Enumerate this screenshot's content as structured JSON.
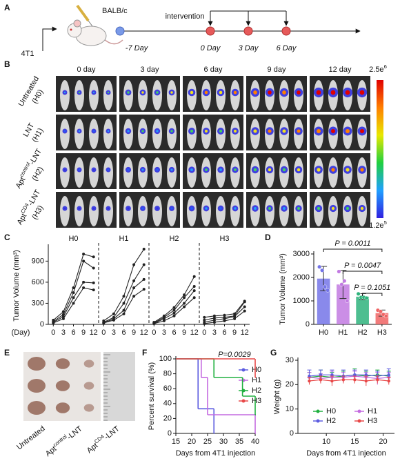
{
  "panel_a": {
    "label": "A",
    "cell_line": "4T1",
    "mouse": "BALB/c",
    "start": "-7 Day",
    "intervention": "intervention",
    "days": [
      "0 Day",
      "3 Day",
      "6 Day"
    ]
  },
  "panel_b": {
    "label": "B",
    "columns": [
      "0 day",
      "3 day",
      "6 day",
      "9 day",
      "12 day"
    ],
    "rows": [
      {
        "lines": [
          "Untreated",
          "(H0)"
        ]
      },
      {
        "lines": [
          "LNT",
          "(H1)"
        ]
      },
      {
        "lines": [
          {
            "base": "Apt",
            "sup": "control",
            "rest": "-LNT"
          },
          "(H2)"
        ]
      },
      {
        "lines": [
          {
            "base": "Apt",
            "sup": "CD4",
            "rest": "-LNT"
          },
          "(H3)"
        ]
      }
    ],
    "colorbar": {
      "max": {
        "base": "2.5e",
        "sup": "6"
      },
      "min": {
        "base": "1.2e",
        "sup": "5"
      }
    }
  },
  "panel_e": {
    "label": "E",
    "groups": [
      "Untreated",
      {
        "base": "Apt",
        "sup": "control",
        "rest": "-LNT"
      },
      {
        "base": "Apt",
        "sup": "CD4",
        "rest": "-LNT"
      }
    ]
  },
  "chart_data": [
    {
      "panel": "C",
      "type": "line",
      "ylabel": "Tumor Volume (mm³)",
      "xlabel": "(Day)",
      "x": [
        0,
        3,
        6,
        9,
        12
      ],
      "xticks": [
        0,
        3,
        6,
        9,
        12
      ],
      "xlim": [
        -1.5,
        13.5
      ],
      "ylim": [
        0,
        1100
      ],
      "yticks": [
        0,
        300,
        600,
        900
      ],
      "color": "#222",
      "groups": [
        {
          "name": "H0",
          "series": [
            {
              "values": [
                60,
                180,
                520,
                1000,
                960
              ]
            },
            {
              "values": [
                40,
                140,
                450,
                900,
                800
              ]
            },
            {
              "values": [
                30,
                110,
                380,
                600,
                590
              ]
            },
            {
              "values": [
                20,
                80,
                300,
                520,
                490
              ]
            }
          ]
        },
        {
          "name": "H1",
          "series": [
            {
              "values": [
                50,
                150,
                400,
                850,
                1070
              ]
            },
            {
              "values": [
                30,
                100,
                300,
                620,
                850
              ]
            },
            {
              "values": [
                20,
                80,
                200,
                520,
                640
              ]
            },
            {
              "values": [
                20,
                60,
                150,
                400,
                500
              ]
            }
          ]
        },
        {
          "name": "H2",
          "series": [
            {
              "values": [
                30,
                120,
                240,
                420,
                680
              ]
            },
            {
              "values": [
                20,
                100,
                200,
                380,
                540
              ]
            },
            {
              "values": [
                15,
                80,
                160,
                300,
                480
              ]
            },
            {
              "values": [
                10,
                50,
                120,
                250,
                380
              ]
            }
          ]
        },
        {
          "name": "H3",
          "series": [
            {
              "values": [
                100,
                120,
                130,
                150,
                330
              ]
            },
            {
              "values": [
                60,
                90,
                100,
                120,
                320
              ]
            },
            {
              "values": [
                30,
                60,
                80,
                110,
                250
              ]
            },
            {
              "values": [
                10,
                30,
                50,
                80,
                190
              ]
            }
          ]
        }
      ]
    },
    {
      "panel": "D",
      "type": "bar",
      "ylabel": "Tumor Volume (mm³)",
      "categories": [
        "H0",
        "H1",
        "H2",
        "H3"
      ],
      "values": [
        1950,
        1700,
        1180,
        480
      ],
      "errors": [
        520,
        600,
        130,
        130
      ],
      "points": [
        [
          2450,
          2300,
          1600,
          1450
        ],
        [
          2250,
          1700,
          1850,
          1000
        ],
        [
          1300,
          1150,
          1150,
          1120
        ],
        [
          600,
          550,
          420,
          350
        ]
      ],
      "colors": [
        "#7474e8",
        "#c27ae2",
        "#2fb37c",
        "#f06464"
      ],
      "ylim": [
        0,
        3000
      ],
      "yticks": [
        0,
        1000,
        2000,
        3000
      ],
      "annotations": [
        "P = 0.0011",
        "P = 0.0047",
        "P = 0.1051"
      ]
    },
    {
      "panel": "F",
      "type": "step",
      "ylabel": "Percent survival (%)",
      "xlabel": "Days from 4T1 injection",
      "xlim": [
        15,
        40
      ],
      "xticks": [
        15,
        20,
        25,
        30,
        35,
        40
      ],
      "ylim": [
        0,
        100
      ],
      "yticks": [
        0,
        20,
        40,
        60,
        80,
        100
      ],
      "annotation": "P=0.0029",
      "legend": "right",
      "series": [
        {
          "name": "H0",
          "color": "#5c5ce0",
          "x": [
            15,
            22,
            27
          ],
          "values": [
            100,
            33,
            0
          ]
        },
        {
          "name": "H1",
          "color": "#c46ae0",
          "x": [
            15,
            23,
            25,
            40
          ],
          "values": [
            100,
            75,
            25,
            0
          ]
        },
        {
          "name": "H2",
          "color": "#20b040",
          "x": [
            15,
            27,
            36,
            40
          ],
          "values": [
            100,
            75,
            50,
            25
          ]
        },
        {
          "name": "H3",
          "color": "#e84848",
          "x": [
            15,
            40
          ],
          "values": [
            100,
            75
          ]
        }
      ]
    },
    {
      "panel": "G",
      "type": "line",
      "ylabel": "Weight (g)",
      "xlabel": "Days from 4T1 injection",
      "x": [
        7,
        9,
        11,
        13,
        15,
        17,
        19,
        21
      ],
      "xlim": [
        5,
        22
      ],
      "xticks": [
        10,
        15,
        20
      ],
      "ylim": [
        0,
        30
      ],
      "yticks": [
        0,
        10,
        20,
        30
      ],
      "legend": "bottom",
      "series": [
        {
          "name": "H0",
          "color": "#20b040",
          "values": [
            23,
            23.5,
            23,
            23.5,
            24,
            23.5,
            24,
            23.5
          ],
          "errors": [
            2,
            2.5,
            2,
            2,
            2.5,
            2,
            2,
            2
          ]
        },
        {
          "name": "H1",
          "color": "#c46ae0",
          "values": [
            23,
            22.5,
            23,
            23,
            23.5,
            23,
            22.5,
            23
          ],
          "errors": [
            2,
            2,
            2.5,
            2,
            2,
            2,
            2.5,
            2
          ]
        },
        {
          "name": "H2",
          "color": "#5c5ce0",
          "values": [
            23.5,
            24,
            24,
            23.5,
            24,
            24,
            23.5,
            24
          ],
          "errors": [
            2.5,
            2,
            2,
            2.5,
            2,
            2,
            2,
            2.5
          ]
        },
        {
          "name": "H3",
          "color": "#e84848",
          "values": [
            21.5,
            22,
            21.5,
            22,
            22,
            21.5,
            22,
            21.5
          ],
          "errors": [
            1.5,
            1.5,
            2,
            1.5,
            1.5,
            2,
            1.5,
            1.5
          ]
        }
      ]
    }
  ]
}
